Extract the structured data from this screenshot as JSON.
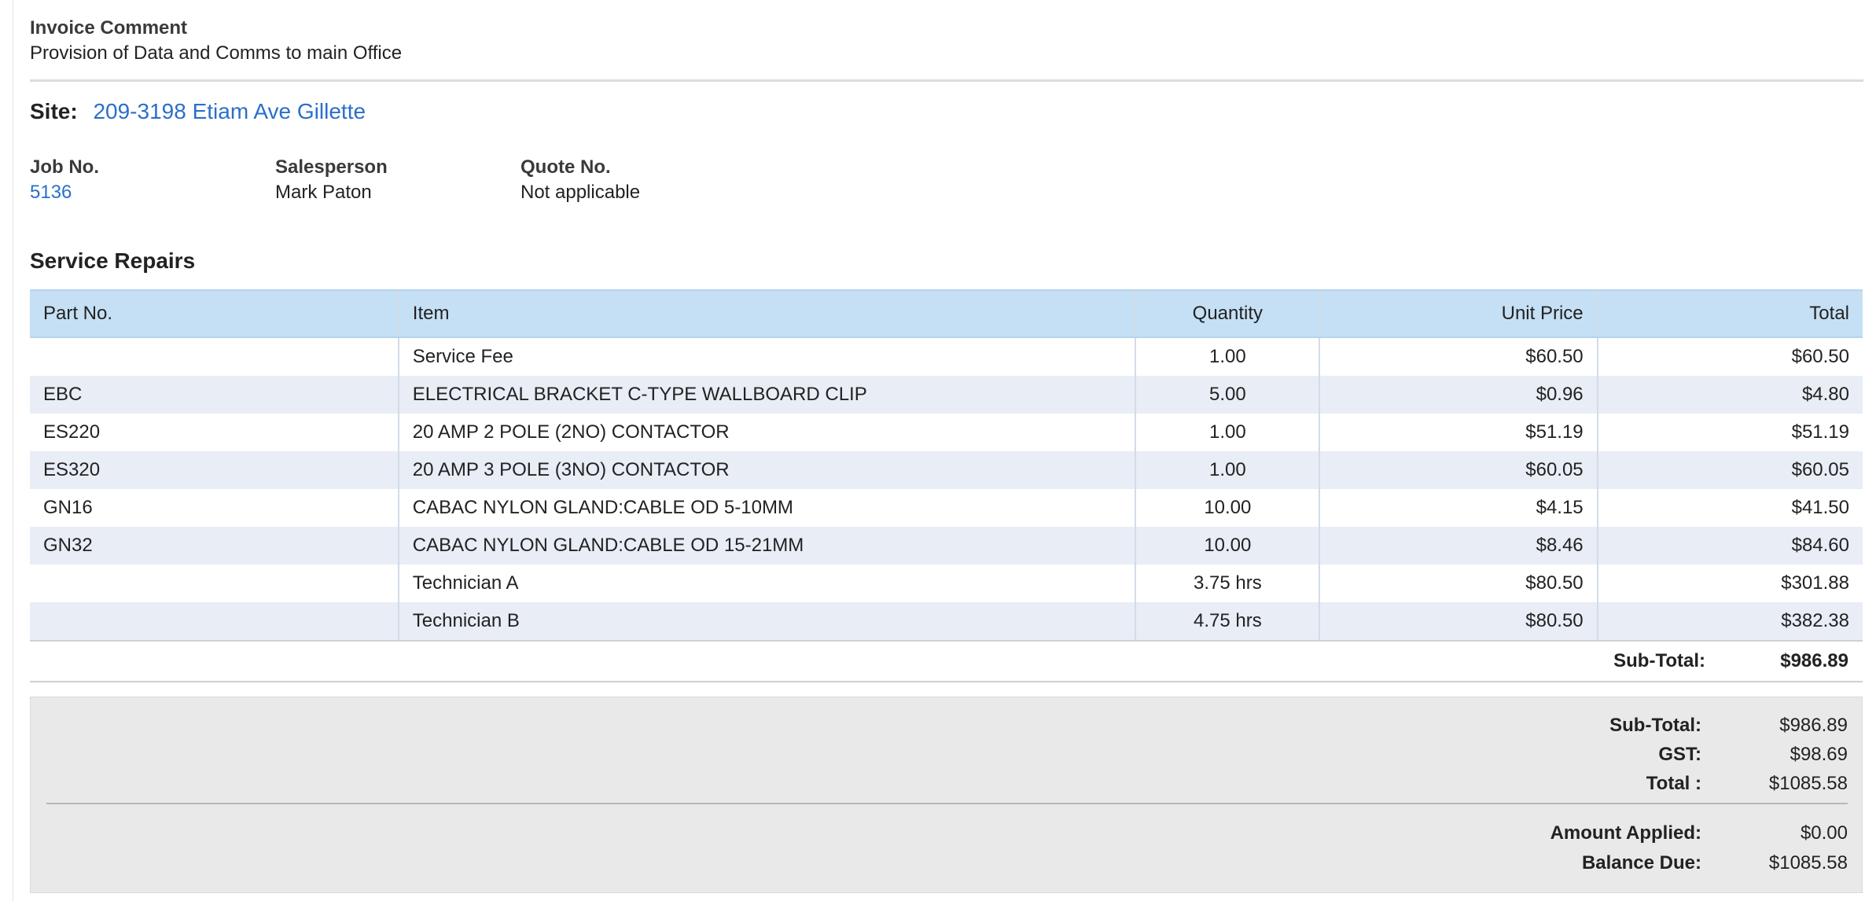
{
  "invoice_comment": {
    "label": "Invoice Comment",
    "text": "Provision of Data and Comms to main Office"
  },
  "site": {
    "label": "Site:",
    "value": "209-3198 Etiam Ave Gillette"
  },
  "meta": {
    "job_no_label": "Job No.",
    "job_no_value": "5136",
    "salesperson_label": "Salesperson",
    "salesperson_value": "Mark Paton",
    "quote_no_label": "Quote No.",
    "quote_no_value": "Not applicable"
  },
  "section_title": "Service Repairs",
  "table": {
    "headers": {
      "part_no": "Part No.",
      "item": "Item",
      "quantity": "Quantity",
      "unit_price": "Unit Price",
      "total": "Total"
    },
    "rows": [
      {
        "part_no": "",
        "item": "Service Fee",
        "quantity": "1.00",
        "unit_price": "$60.50",
        "total": "$60.50"
      },
      {
        "part_no": "EBC",
        "item": "ELECTRICAL BRACKET C-TYPE WALLBOARD CLIP",
        "quantity": "5.00",
        "unit_price": "$0.96",
        "total": "$4.80"
      },
      {
        "part_no": "ES220",
        "item": "20 AMP 2 POLE (2NO) CONTACTOR",
        "quantity": "1.00",
        "unit_price": "$51.19",
        "total": "$51.19"
      },
      {
        "part_no": "ES320",
        "item": "20 AMP 3 POLE (3NO) CONTACTOR",
        "quantity": "1.00",
        "unit_price": "$60.05",
        "total": "$60.05"
      },
      {
        "part_no": "GN16",
        "item": "CABAC NYLON GLAND:CABLE OD 5-10MM",
        "quantity": "10.00",
        "unit_price": "$4.15",
        "total": "$41.50"
      },
      {
        "part_no": "GN32",
        "item": "CABAC NYLON GLAND:CABLE OD 15-21MM",
        "quantity": "10.00",
        "unit_price": "$8.46",
        "total": "$84.60"
      },
      {
        "part_no": "",
        "item": "Technician A",
        "quantity": "3.75 hrs",
        "unit_price": "$80.50",
        "total": "$301.88"
      },
      {
        "part_no": "",
        "item": "Technician B",
        "quantity": "4.75 hrs",
        "unit_price": "$80.50",
        "total": "$382.38"
      }
    ],
    "subtotal_label": "Sub-Total:",
    "subtotal_value": "$986.89"
  },
  "summary": {
    "subtotal_label": "Sub-Total:",
    "subtotal_value": "$986.89",
    "gst_label": "GST:",
    "gst_value": "$98.69",
    "total_label": "Total :",
    "total_value": "$1085.58",
    "amount_applied_label": "Amount Applied:",
    "amount_applied_value": "$0.00",
    "balance_due_label": "Balance Due:",
    "balance_due_value": "$1085.58"
  },
  "colors": {
    "link": "#2a6fc9",
    "header_bg": "#c5e0f5",
    "alt_row_bg": "#e8edf6",
    "summary_bg": "#e9e9e9"
  }
}
